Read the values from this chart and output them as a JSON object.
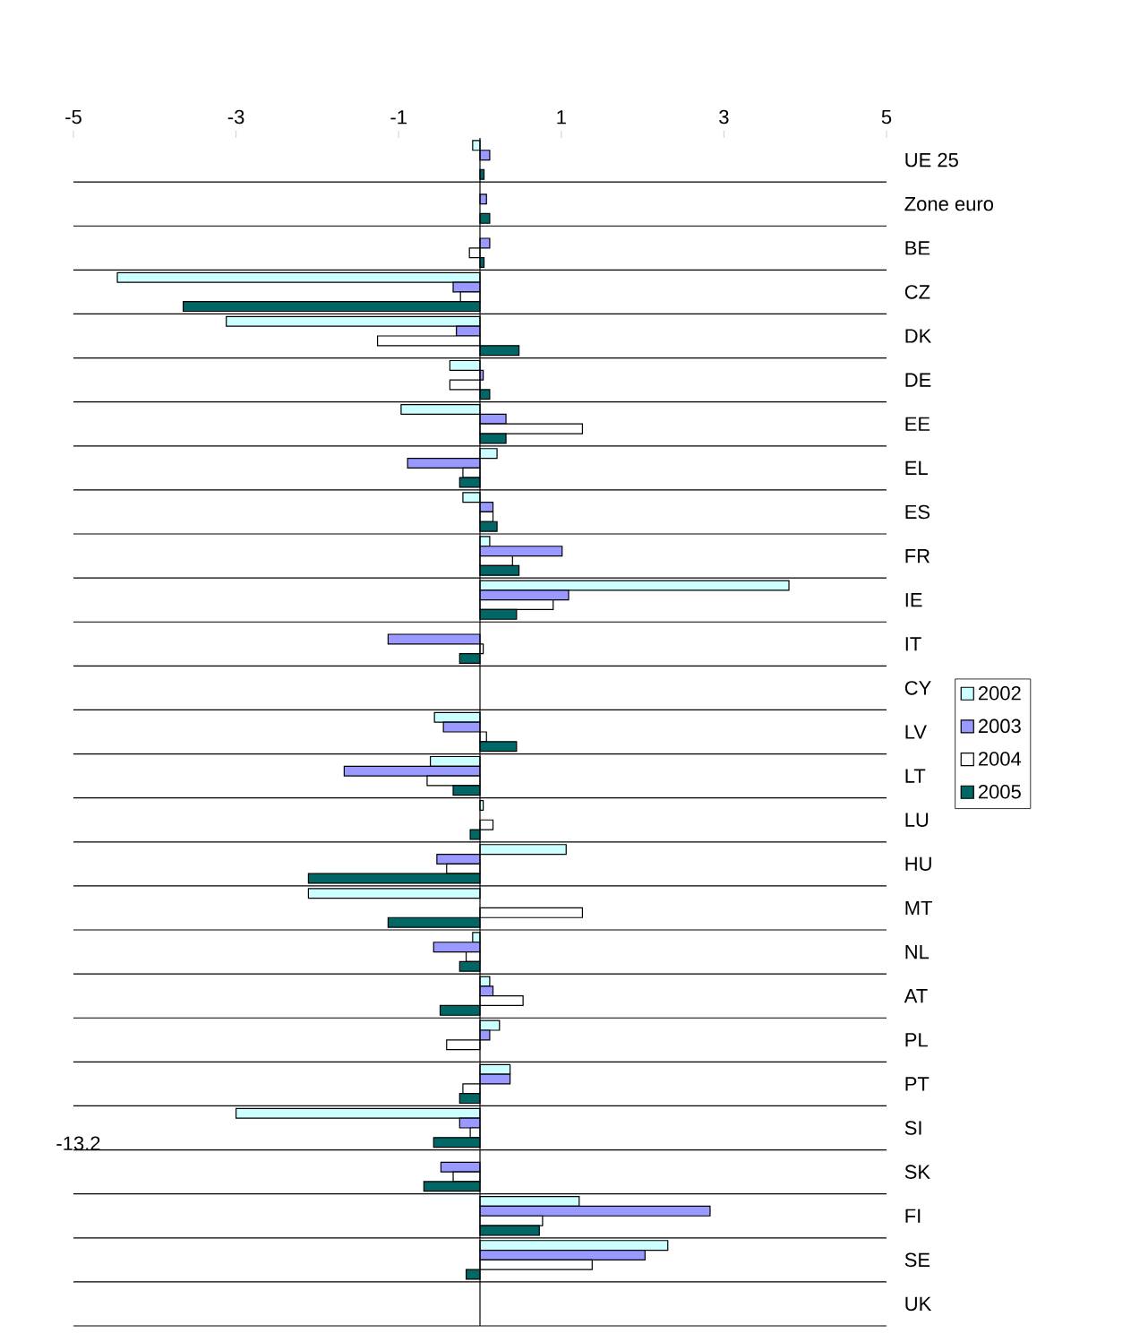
{
  "chart_data": {
    "type": "bar",
    "orientation": "horizontal",
    "categories": [
      "UE 25",
      "Zone euro",
      "BE",
      "CZ",
      "DK",
      "DE",
      "EE",
      "EL",
      "ES",
      "FR",
      "IE",
      "IT",
      "CY",
      "LV",
      "LT",
      "LU",
      "HU",
      "MT",
      "NL",
      "AT",
      "PL",
      "PT",
      "SI",
      "SK",
      "FI",
      "SE",
      "UK"
    ],
    "series": [
      {
        "name": "2002",
        "color": "#ccffff",
        "values": [
          -0.09,
          null,
          null,
          -4.46,
          -3.12,
          -0.37,
          -0.97,
          0.21,
          -0.21,
          0.12,
          3.8,
          null,
          null,
          -0.56,
          -0.61,
          0.04,
          1.06,
          -2.11,
          -0.09,
          0.12,
          0.24,
          0.37,
          -3.0,
          null,
          1.22,
          2.31,
          null
        ]
      },
      {
        "name": "2003",
        "color": "#9999ff",
        "values": [
          0.12,
          0.08,
          0.12,
          -0.33,
          -0.29,
          0.04,
          0.32,
          -0.89,
          0.16,
          1.01,
          1.09,
          -1.13,
          null,
          -0.45,
          -1.67,
          null,
          -0.53,
          null,
          -0.57,
          0.16,
          0.12,
          0.37,
          -0.25,
          -0.48,
          2.83,
          2.03,
          null
        ]
      },
      {
        "name": "2004",
        "color": "#ffffff",
        "values": [
          null,
          null,
          -0.13,
          -0.24,
          -1.26,
          -0.37,
          1.26,
          -0.21,
          0.16,
          0.4,
          0.9,
          0.04,
          null,
          0.08,
          -0.65,
          0.16,
          -0.41,
          1.26,
          -0.17,
          0.53,
          -0.41,
          -0.21,
          -0.12,
          -0.33,
          0.77,
          1.38,
          null
        ]
      },
      {
        "name": "2005",
        "color": "#006666",
        "values": [
          0.05,
          0.12,
          0.05,
          -3.65,
          0.48,
          0.12,
          0.32,
          -0.25,
          0.21,
          0.48,
          0.45,
          -0.25,
          null,
          0.45,
          -0.33,
          -0.12,
          -2.11,
          -1.13,
          -0.25,
          -0.49,
          null,
          -0.25,
          -0.57,
          -0.69,
          0.73,
          -0.17,
          null
        ]
      }
    ],
    "annotations": [
      "-13.2"
    ],
    "xlim": [
      -5,
      5
    ],
    "xticks": [
      -5,
      -3,
      -1,
      1,
      3,
      5
    ],
    "ref_lines": [
      {
        "axis": "x",
        "value": 0,
        "color": "#000000"
      }
    ],
    "grid": "y",
    "legend": "right"
  }
}
